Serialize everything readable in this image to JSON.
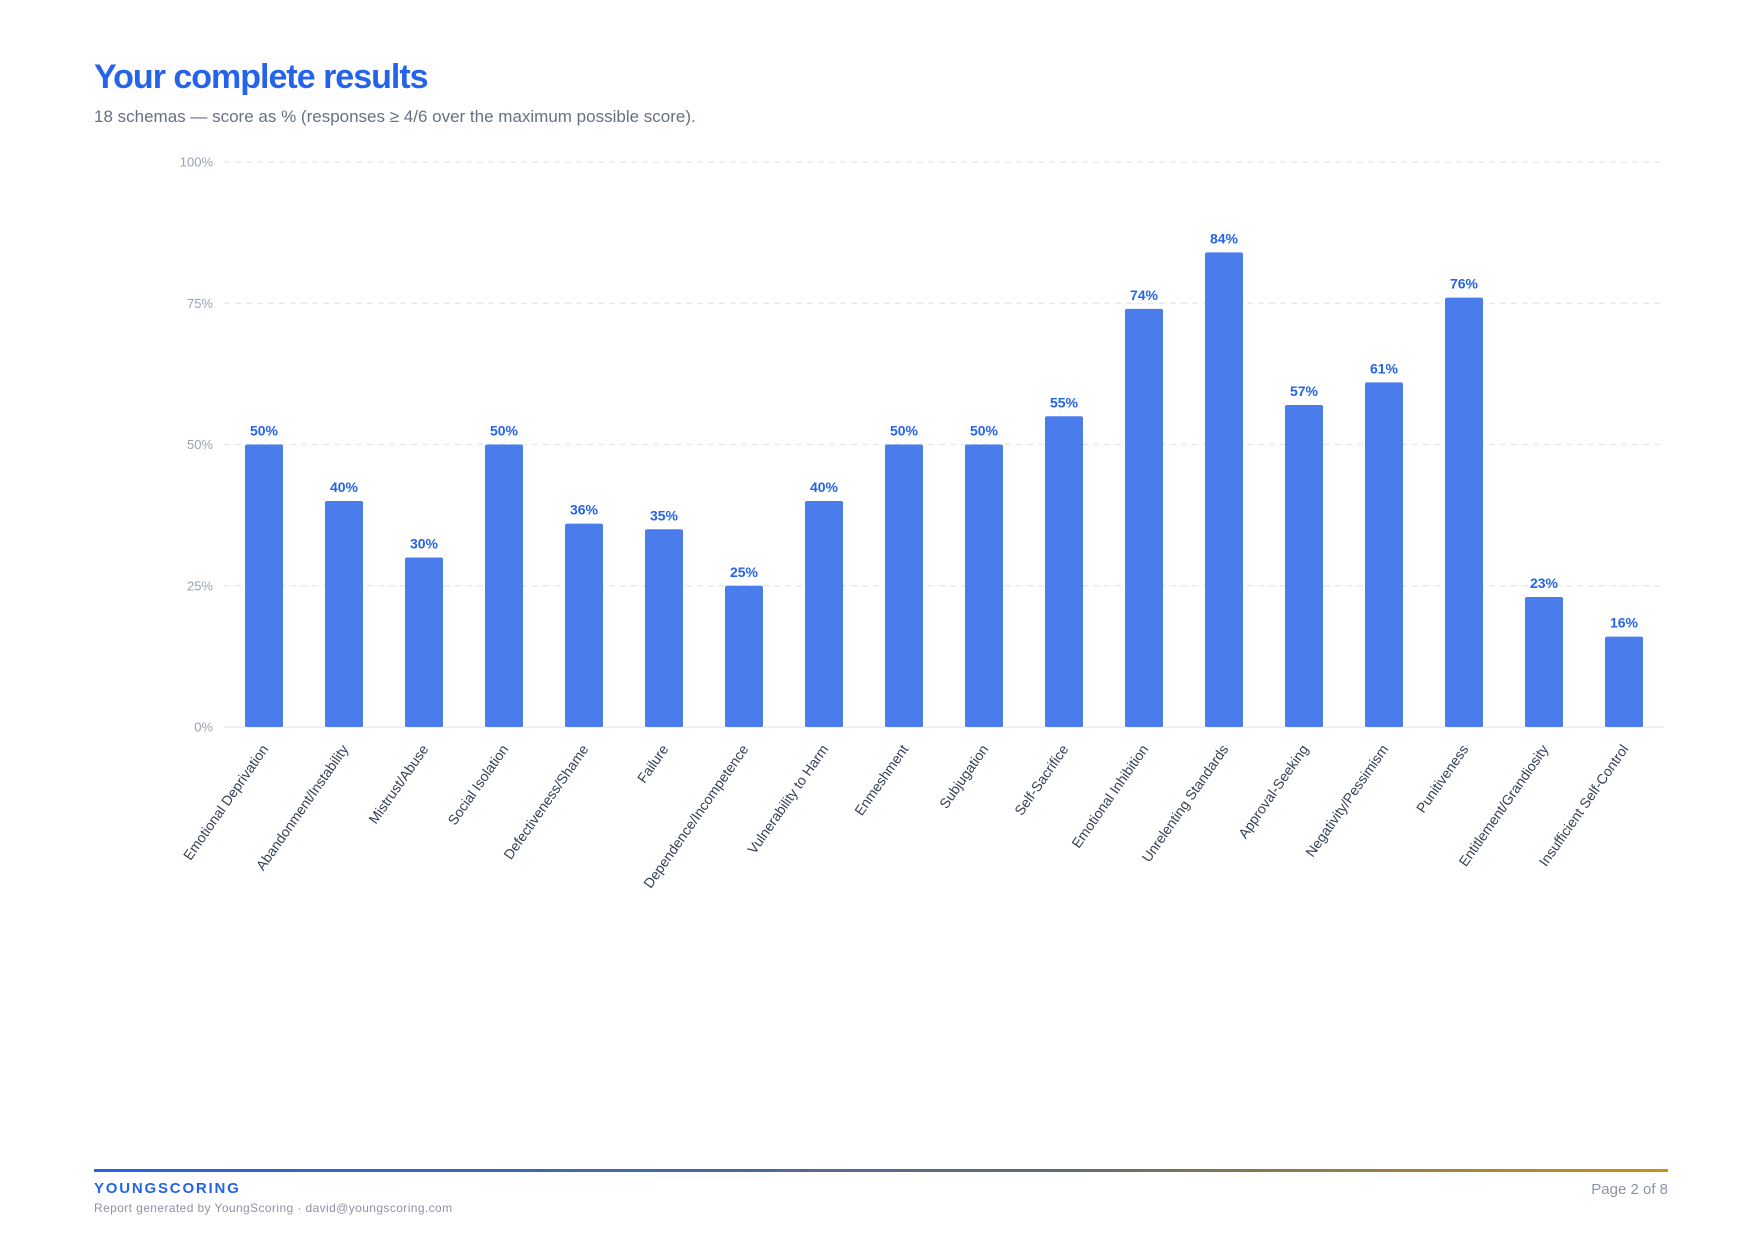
{
  "header": {
    "title": "Your complete results",
    "subtitle": "18 schemas — score as % (responses ≥ 4/6 over the maximum possible score)."
  },
  "colors": {
    "accent": "#2563eb",
    "bar": "#4a7cec",
    "value_label": "#2563eb",
    "gridline": "#e3e6ea",
    "tick_text": "#98a2b3",
    "category_text": "#344054"
  },
  "chart_data": {
    "type": "bar",
    "categories": [
      "Emotional Deprivation",
      "Abandonment/Instability",
      "Mistrust/Abuse",
      "Social Isolation",
      "Defectiveness/Shame",
      "Failure",
      "Dependence/Incompetence",
      "Vulnerability to Harm",
      "Enmeshment",
      "Subjugation",
      "Self-Sacrifice",
      "Emotional Inhibition",
      "Unrelenting Standards",
      "Approval-Seeking",
      "Negativity/Pessimism",
      "Punitiveness",
      "Entitlement/Grandiosity",
      "Insufficient Self-Control"
    ],
    "values": [
      50,
      40,
      30,
      50,
      36,
      35,
      25,
      40,
      50,
      50,
      55,
      74,
      84,
      57,
      61,
      76,
      23,
      16
    ],
    "value_labels": [
      "50%",
      "40%",
      "30%",
      "50%",
      "36%",
      "35%",
      "25%",
      "40%",
      "50%",
      "50%",
      "55%",
      "74%",
      "84%",
      "57%",
      "61%",
      "76%",
      "23%",
      "16%"
    ],
    "yticks": [
      0,
      25,
      50,
      75,
      100
    ],
    "ytick_labels": [
      "0%",
      "25%",
      "50%",
      "75%",
      "100%"
    ],
    "ylim": [
      0,
      100
    ],
    "grid": true,
    "legend": "none"
  },
  "footer": {
    "brand": "YOUNGSCORING",
    "note": "Report generated by YoungScoring · david@youngscoring.com",
    "page": "Page 2 of 8"
  }
}
